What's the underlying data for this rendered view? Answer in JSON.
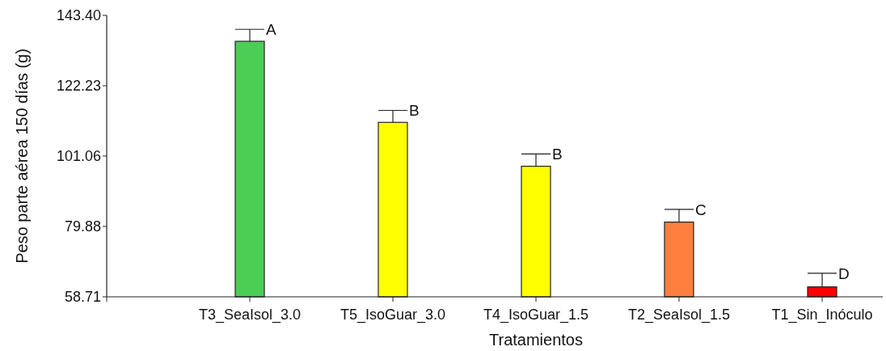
{
  "chart_data": {
    "type": "bar",
    "xlabel": "Tratamientos",
    "ylabel": "Peso parte aérea 150 días (g)",
    "categories": [
      "T3_SeaIsol_3.0",
      "T5_IsoGuar_3.0",
      "T4_IsoGuar_1.5",
      "T2_SeaIsol_1.5",
      "T1_Sin_Inóculo"
    ],
    "values": [
      135.6,
      111.2,
      98.0,
      81.2,
      61.7
    ],
    "colors": [
      "#4ccd55",
      "#ffff00",
      "#ffff00",
      "#ff7f3f",
      "#ff0000"
    ],
    "errors": [
      3.6,
      3.6,
      3.7,
      3.8,
      4.1
    ],
    "ylim": [
      58.71,
      143.4
    ],
    "yticks": [
      {
        "value": 58.71,
        "label": "58.71"
      },
      {
        "value": 79.88,
        "label": "79.88"
      },
      {
        "value": 101.06,
        "label": "101.06"
      },
      {
        "value": 122.23,
        "label": "122.23"
      },
      {
        "value": 143.4,
        "label": "143.40"
      }
    ],
    "annotations": [
      {
        "text": "A",
        "x": "T3_SeaIsol_3.0",
        "y": 139.2
      },
      {
        "text": "B",
        "x": "T5_IsoGuar_3.0",
        "y": 114.8
      },
      {
        "text": "B",
        "x": "T4_IsoGuar_1.5",
        "y": 101.7
      },
      {
        "text": "C",
        "x": "T2_SeaIsol_1.5",
        "y": 85.0
      },
      {
        "text": "D",
        "x": "T1_Sin_Inóculo",
        "y": 65.8
      }
    ],
    "grid": false
  }
}
